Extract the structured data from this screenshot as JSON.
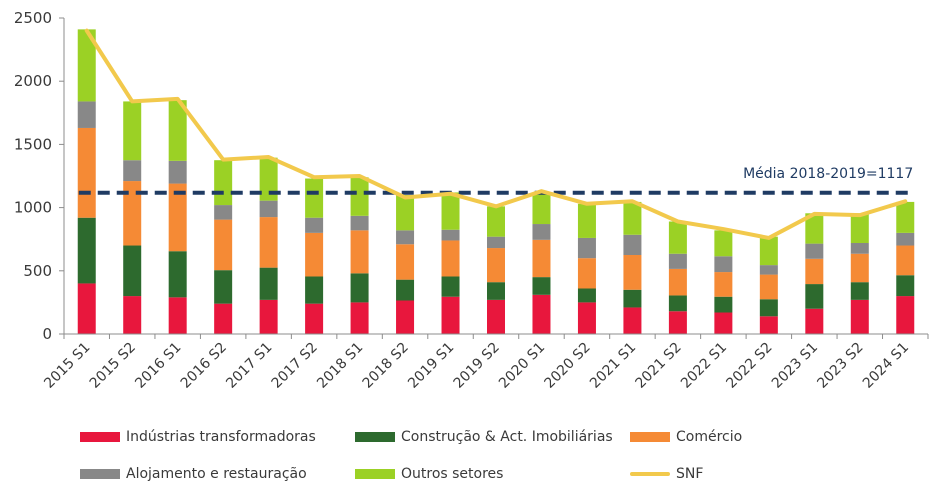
{
  "chart_data": {
    "type": "bar",
    "stacked": true,
    "categories": [
      "2015 S1",
      "2015 S2",
      "2016 S1",
      "2016 S2",
      "2017 S1",
      "2017 S2",
      "2018 S1",
      "2018 S2",
      "2019 S1",
      "2019 S2",
      "2020 S1",
      "2020 S2",
      "2021 S1",
      "2021 S2",
      "2022 S1",
      "2022 S2",
      "2023 S1",
      "2023 S2",
      "2024 S1"
    ],
    "ylim": [
      0,
      2500
    ],
    "yticks": [
      0,
      500,
      1000,
      1500,
      2000,
      2500
    ],
    "series": [
      {
        "name": "Indústrias transformadoras",
        "color": "#e8173d",
        "values": [
          400,
          300,
          290,
          240,
          270,
          240,
          250,
          265,
          295,
          270,
          310,
          250,
          210,
          180,
          170,
          140,
          200,
          270,
          300
        ]
      },
      {
        "name": "Construção & Act. Imobiliárias",
        "color": "#2d6a2e",
        "values": [
          520,
          400,
          365,
          265,
          255,
          215,
          230,
          165,
          160,
          140,
          140,
          110,
          140,
          125,
          125,
          135,
          195,
          140,
          165
        ]
      },
      {
        "name": "Comércio",
        "color": "#f58a35",
        "values": [
          710,
          510,
          535,
          400,
          400,
          345,
          340,
          280,
          285,
          270,
          295,
          240,
          275,
          210,
          195,
          195,
          200,
          225,
          235
        ]
      },
      {
        "name": "Alojamento e restauração",
        "color": "#888888",
        "values": [
          210,
          165,
          180,
          115,
          130,
          120,
          115,
          110,
          85,
          90,
          125,
          160,
          160,
          120,
          125,
          75,
          120,
          85,
          100
        ]
      },
      {
        "name": "Outros setores",
        "color": "#9bd125",
        "values": [
          570,
          465,
          480,
          355,
          340,
          310,
          305,
          280,
          295,
          240,
          235,
          270,
          260,
          255,
          205,
          225,
          240,
          235,
          245
        ]
      }
    ],
    "line": {
      "name": "SNF",
      "color": "#f2c94c",
      "values": [
        2400,
        1840,
        1860,
        1380,
        1400,
        1240,
        1250,
        1080,
        1110,
        1010,
        1130,
        1030,
        1050,
        890,
        830,
        760,
        950,
        940,
        1050
      ]
    },
    "reference_line": {
      "value": 1117,
      "label": "Média 2018-2019=1117",
      "color": "#1f3b63"
    },
    "legend_position": "bottom",
    "grid": false
  }
}
